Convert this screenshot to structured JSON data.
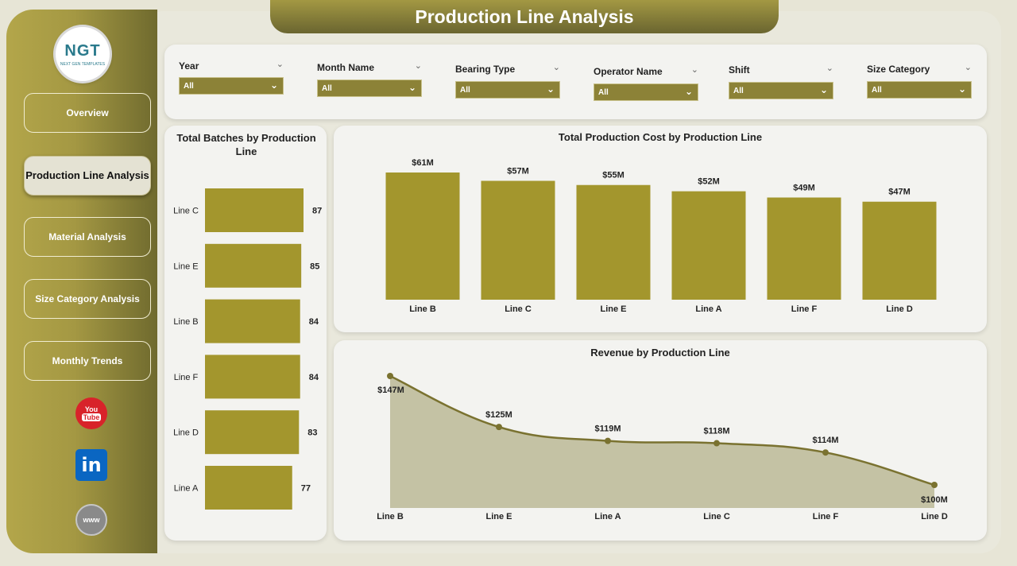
{
  "page": {
    "title": "Production Line Analysis"
  },
  "logo": {
    "text": "NGT",
    "subtext": "NEXT GEN TEMPLATES"
  },
  "nav": [
    {
      "label": "Overview",
      "active": false
    },
    {
      "label": "Production Line Analysis",
      "active": true
    },
    {
      "label": "Material Analysis",
      "active": false
    },
    {
      "label": "Size Category Analysis",
      "active": false
    },
    {
      "label": "Monthly Trends",
      "active": false
    }
  ],
  "social": {
    "youtube_top": "You",
    "youtube_bottom": "Tube",
    "linkedin": "in",
    "www": "www"
  },
  "filters": [
    {
      "label": "Year",
      "value": "All"
    },
    {
      "label": "Month Name",
      "value": "All"
    },
    {
      "label": "Bearing Type",
      "value": "All"
    },
    {
      "label": "Operator Name",
      "value": "All"
    },
    {
      "label": "Shift",
      "value": "All"
    },
    {
      "label": "Size Category",
      "value": "All"
    }
  ],
  "colors": {
    "accent": "#a3962d",
    "line": "#7a7230",
    "area": "#c4c2a4",
    "sidebar": "#a49843"
  },
  "chart_data": [
    {
      "type": "bar",
      "orientation": "horizontal",
      "title": "Total Batches by Production Line",
      "categories": [
        "Line C",
        "Line E",
        "Line B",
        "Line F",
        "Line D",
        "Line A"
      ],
      "values": [
        87,
        85,
        84,
        84,
        83,
        77
      ],
      "labels": [
        "87",
        "85",
        "84",
        "84",
        "83",
        "77"
      ]
    },
    {
      "type": "bar",
      "title": "Total Production Cost by Production Line",
      "categories": [
        "Line B",
        "Line C",
        "Line E",
        "Line A",
        "Line F",
        "Line D"
      ],
      "values": [
        61,
        57,
        55,
        52,
        49,
        47
      ],
      "labels": [
        "$61M",
        "$57M",
        "$55M",
        "$52M",
        "$49M",
        "$47M"
      ],
      "unit": "$M"
    },
    {
      "type": "area",
      "title": "Revenue by Production Line",
      "categories": [
        "Line B",
        "Line E",
        "Line A",
        "Line C",
        "Line F",
        "Line D"
      ],
      "values": [
        147,
        125,
        119,
        118,
        114,
        100
      ],
      "labels": [
        "$147M",
        "$125M",
        "$119M",
        "$118M",
        "$114M",
        "$100M"
      ],
      "unit": "$M"
    }
  ]
}
